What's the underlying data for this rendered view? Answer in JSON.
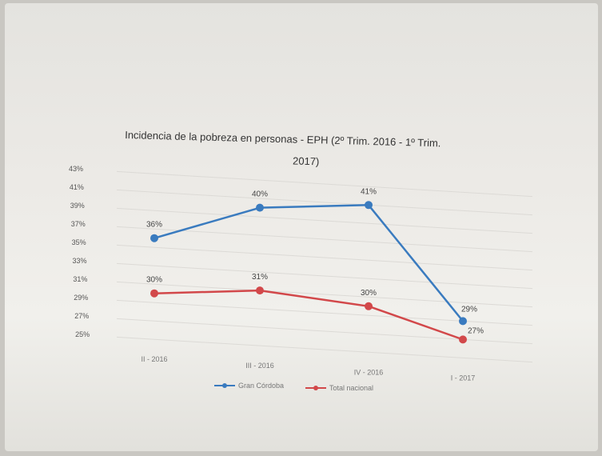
{
  "chart_data": {
    "type": "line",
    "title": [
      "Incidencia de la pobreza en personas - EPH (2º Trim. 2016 - 1º Trim.",
      "2017)"
    ],
    "categories": [
      "II - 2016",
      "III - 2016",
      "IV - 2016",
      "I - 2017"
    ],
    "series": [
      {
        "name": "Gran Córdoba",
        "values": [
          36,
          40,
          41,
          29
        ],
        "labels": [
          "36%",
          "40%",
          "41%",
          "29%"
        ],
        "color": "#3a7bbf"
      },
      {
        "name": "Total nacional",
        "values": [
          30,
          31,
          30,
          27
        ],
        "labels": [
          "30%",
          "31%",
          "30%",
          "27%"
        ],
        "color": "#d2484a"
      }
    ],
    "y_ticks": [
      "43%",
      "41%",
      "39%",
      "37%",
      "35%",
      "33%",
      "31%",
      "29%",
      "27%",
      "25%"
    ],
    "ylim": [
      25,
      43
    ],
    "grid": true,
    "legend_position": "bottom"
  }
}
